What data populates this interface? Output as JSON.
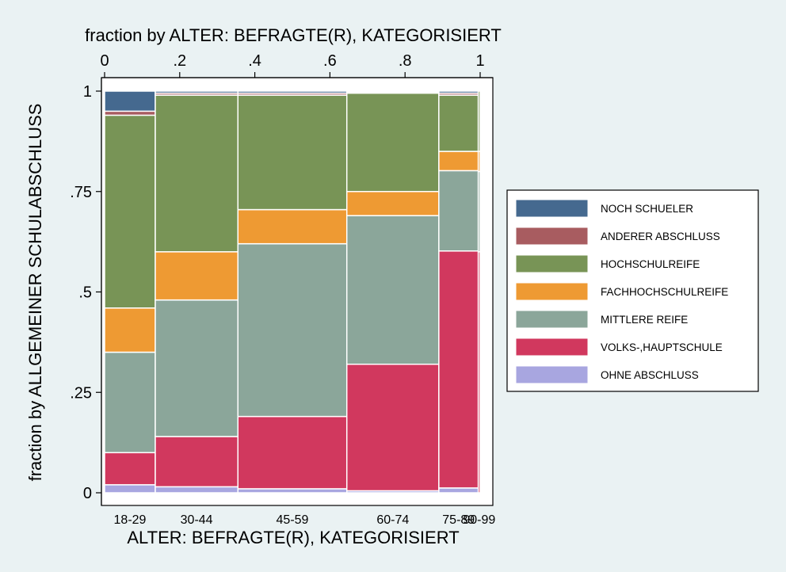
{
  "chart_data": {
    "type": "mosaic",
    "top_axis_title": "fraction by ALTER: BEFRAGTE(R), KATEGORISIERT",
    "left_axis_title": "fraction by ALLGEMEINER SCHULABSCHLUSS",
    "bottom_axis_title": "ALTER: BEFRAGTE(R), KATEGORISIERT",
    "top_ticks": [
      {
        "value": 0,
        "label": "0"
      },
      {
        "value": 0.2,
        "label": ".2"
      },
      {
        "value": 0.4,
        "label": ".4"
      },
      {
        "value": 0.6,
        "label": ".6"
      },
      {
        "value": 0.8,
        "label": ".8"
      },
      {
        "value": 1,
        "label": "1"
      }
    ],
    "left_ticks": [
      {
        "value": 0,
        "label": "0"
      },
      {
        "value": 0.25,
        "label": ".25"
      },
      {
        "value": 0.5,
        "label": ".5"
      },
      {
        "value": 0.75,
        "label": ".75"
      },
      {
        "value": 1,
        "label": "1"
      }
    ],
    "xlim": [
      0,
      1
    ],
    "ylim": [
      0,
      1
    ],
    "series": [
      {
        "name": "OHNE ABSCHLUSS",
        "color": "#a8a6e0"
      },
      {
        "name": "VOLKS-,HAUPTSCHULE",
        "color": "#d1385e"
      },
      {
        "name": "MITTLERE REIFE",
        "color": "#8ba69a"
      },
      {
        "name": "FACHHOCHSCHULREIFE",
        "color": "#ee9a33"
      },
      {
        "name": "HOCHSCHULREIFE",
        "color": "#789456"
      },
      {
        "name": "ANDERER ABSCHLUSS",
        "color": "#a85c60"
      },
      {
        "name": "NOCH SCHUELER",
        "color": "#45698f"
      }
    ],
    "legend_order": [
      "NOCH SCHUELER",
      "ANDERER ABSCHLUSS",
      "HOCHSCHULREIFE",
      "FACHHOCHSCHULREIFE",
      "MITTLERE REIFE",
      "VOLKS-,HAUPTSCHULE",
      "OHNE ABSCHLUSS"
    ],
    "legend_position": "right",
    "categories": [
      {
        "label": "18-29",
        "x_start": 0.0,
        "x_end": 0.135,
        "values": [
          0.02,
          0.08,
          0.25,
          0.11,
          0.48,
          0.01,
          0.05
        ]
      },
      {
        "label": "30-44",
        "x_start": 0.135,
        "x_end": 0.355,
        "values": [
          0.015,
          0.125,
          0.34,
          0.12,
          0.39,
          0.005,
          0.005
        ]
      },
      {
        "label": "45-59",
        "x_start": 0.355,
        "x_end": 0.645,
        "values": [
          0.01,
          0.18,
          0.43,
          0.085,
          0.285,
          0.005,
          0.005
        ]
      },
      {
        "label": "60-74",
        "x_start": 0.645,
        "x_end": 0.89,
        "values": [
          0.005,
          0.315,
          0.37,
          0.06,
          0.245,
          0.003,
          0.002
        ]
      },
      {
        "label": "75-89",
        "x_start": 0.89,
        "x_end": 0.995,
        "values": [
          0.012,
          0.59,
          0.2,
          0.048,
          0.14,
          0.005,
          0.005
        ]
      },
      {
        "label": "90-99",
        "x_start": 0.995,
        "x_end": 1.0,
        "values": [
          0.0,
          0.6,
          0.2,
          0.05,
          0.15,
          0.0,
          0.0
        ]
      }
    ]
  }
}
